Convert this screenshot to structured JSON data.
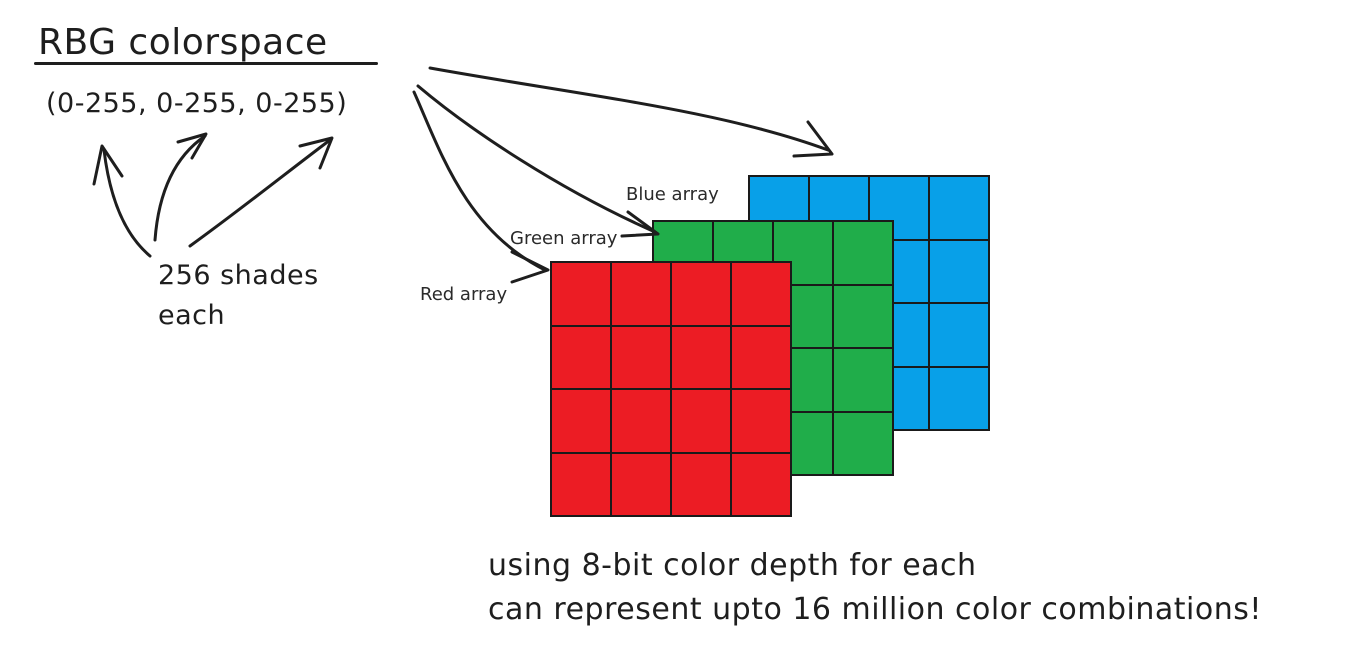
{
  "title": "RBG colorspace",
  "range_text": "(0-255, 0-255, 0-255)",
  "shades_text": "256 shades each",
  "arrays": {
    "blue_label": "Blue array",
    "green_label": "Green array",
    "red_label": "Red array"
  },
  "colors": {
    "red": "#ec1c24",
    "green": "#20ad4a",
    "blue": "#08a0e8",
    "ink": "#1e1e1e"
  },
  "footer": {
    "line1": "using 8-bit color depth for each",
    "line2": "can represent upto 16 million color combinations!"
  }
}
